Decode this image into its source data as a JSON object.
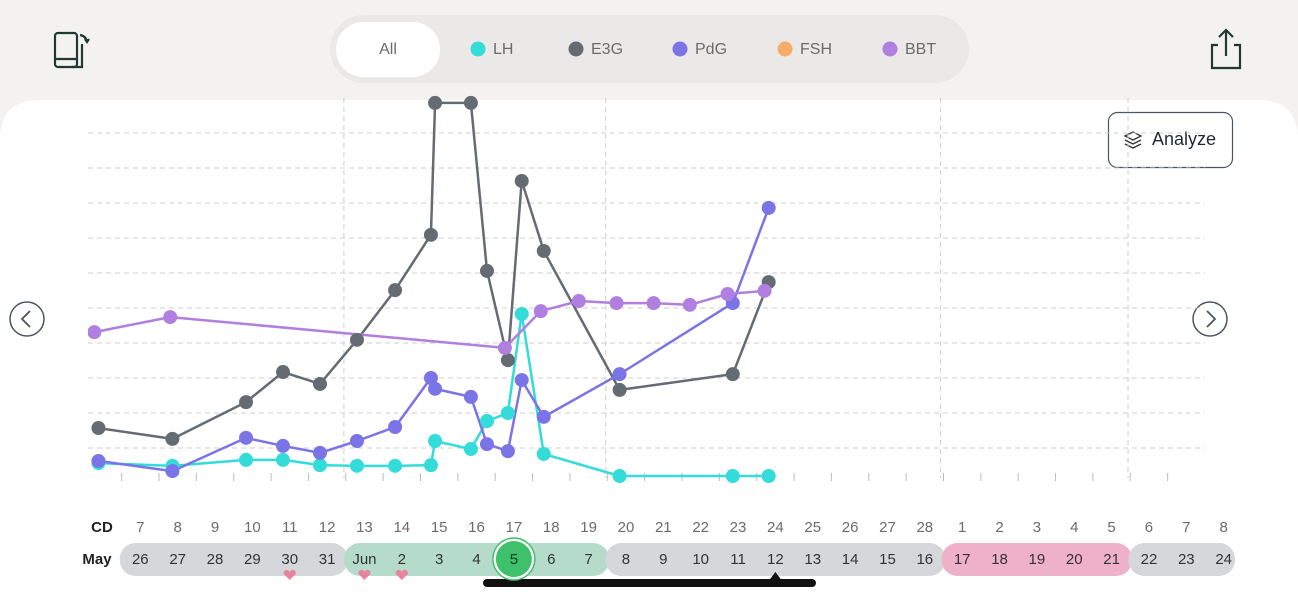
{
  "filter_all": "All",
  "analyze_button": "Analyze",
  "chart_data": {
    "type": "line",
    "xlim": [
      -1.4,
      28.5
    ],
    "ylim": [
      0,
      11
    ],
    "grid_y": [
      1,
      2,
      3,
      4,
      5,
      6,
      7,
      8,
      9,
      10
    ],
    "grid_x": [
      5.45,
      12.46,
      21.42,
      26.44
    ],
    "series": [
      {
        "name": "LH",
        "color": "#33dcd8",
        "x": [
          -1.12,
          0.86,
          2.83,
          3.82,
          4.81,
          5.8,
          6.82,
          7.78,
          7.89,
          8.85,
          9.28,
          9.84,
          10.21,
          10.8,
          12.83,
          15.86,
          16.82
        ],
        "values": [
          0.57,
          0.49,
          0.66,
          0.66,
          0.51,
          0.49,
          0.49,
          0.51,
          1.2,
          0.97,
          1.77,
          2.0,
          4.83,
          0.83,
          0.2,
          0.2,
          0.2
        ]
      },
      {
        "name": "E3G",
        "color": "#646b73",
        "x": [
          -1.12,
          0.86,
          2.83,
          3.82,
          4.81,
          5.8,
          6.82,
          7.78,
          7.89,
          8.85,
          9.28,
          9.84,
          10.21,
          10.8,
          12.83,
          15.86,
          16.82
        ],
        "values": [
          1.57,
          1.26,
          2.31,
          3.17,
          2.83,
          4.09,
          5.51,
          7.09,
          10.86,
          10.86,
          6.06,
          3.51,
          8.63,
          6.63,
          2.66,
          3.11,
          5.74
        ]
      },
      {
        "name": "PdG",
        "color": "#7b74e6",
        "x": [
          -1.12,
          0.86,
          2.83,
          3.82,
          4.81,
          5.8,
          6.82,
          7.78,
          7.89,
          8.85,
          9.28,
          9.84,
          10.21,
          10.8,
          12.83,
          15.86,
          16.82
        ],
        "values": [
          0.63,
          0.34,
          1.29,
          1.06,
          0.86,
          1.2,
          1.6,
          3.0,
          2.69,
          2.46,
          1.11,
          0.91,
          2.94,
          1.89,
          3.11,
          5.14,
          7.86
        ]
      },
      {
        "name": "FSH",
        "color": "#f7ad6a",
        "x": [],
        "values": []
      },
      {
        "name": "BBT",
        "color": "#b07fe0",
        "x": [
          -1.23,
          0.8,
          9.76,
          10.72,
          11.74,
          12.75,
          13.74,
          14.71,
          15.72,
          16.71
        ],
        "values": [
          4.31,
          4.74,
          3.86,
          4.91,
          5.2,
          5.14,
          5.14,
          5.09,
          5.4,
          5.49
        ]
      }
    ]
  },
  "cycle_row": {
    "label": "CD",
    "days": [
      7,
      8,
      9,
      10,
      11,
      12,
      13,
      14,
      15,
      16,
      17,
      18,
      19,
      20,
      21,
      22,
      23,
      24,
      25,
      26,
      27,
      28,
      1,
      2,
      3,
      4,
      5,
      6,
      7,
      8
    ]
  },
  "date_row": {
    "label": "May",
    "dates": [
      26,
      27,
      28,
      29,
      30,
      31,
      "Jun",
      2,
      3,
      4,
      5,
      6,
      7,
      8,
      9,
      10,
      11,
      12,
      13,
      14,
      15,
      16,
      17,
      18,
      19,
      20,
      21,
      22,
      23,
      24
    ]
  }
}
